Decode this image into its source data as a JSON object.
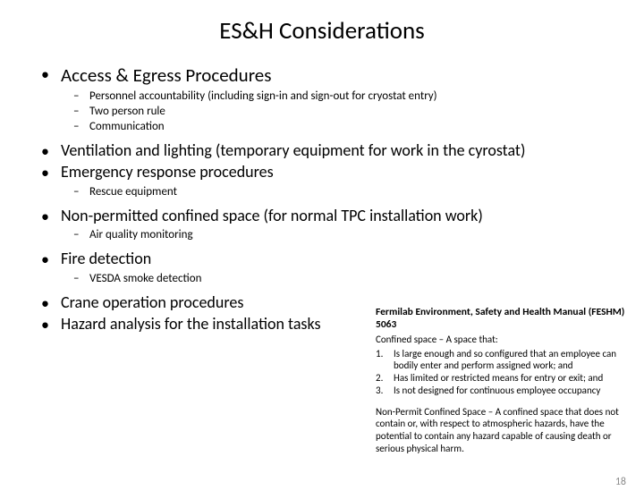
{
  "title": "ES&H Considerations",
  "bullets": {
    "b1": "Access & Egress Procedures",
    "b1_1": "Personnel accountability (including sign-in and sign-out for cryostat entry)",
    "b1_2": "Two person rule",
    "b1_3": "Communication",
    "b2": "Ventilation and lighting (temporary equipment for work in the cyrostat)",
    "b3": "Emergency response procedures",
    "b3_1": "Rescue equipment",
    "b4": "Non-permitted confined space (for normal TPC installation work)",
    "b4_1": "Air quality monitoring",
    "b5": "Fire detection",
    "b5_1": "VESDA smoke detection",
    "b6": "Crane operation procedures",
    "b7": "Hazard analysis for the installation tasks"
  },
  "sidebar": {
    "title": "Fermilab Environment, Safety and Health Manual (FESHM) 5063",
    "def": "Confined space – A space that:",
    "i1n": "1.",
    "i1": "Is large enough and so configured that an employee can bodily enter and perform assigned work; and",
    "i2n": "2.",
    "i2": "Has limited or restricted means for entry or exit; and",
    "i3n": "3.",
    "i3": "Is not designed for continuous employee occupancy",
    "note": "Non-Permit Confined Space – A confined space that does not contain or, with respect to atmospheric hazards, have the potential to contain any hazard capable of causing death or serious physical harm."
  },
  "pageNumber": "18"
}
